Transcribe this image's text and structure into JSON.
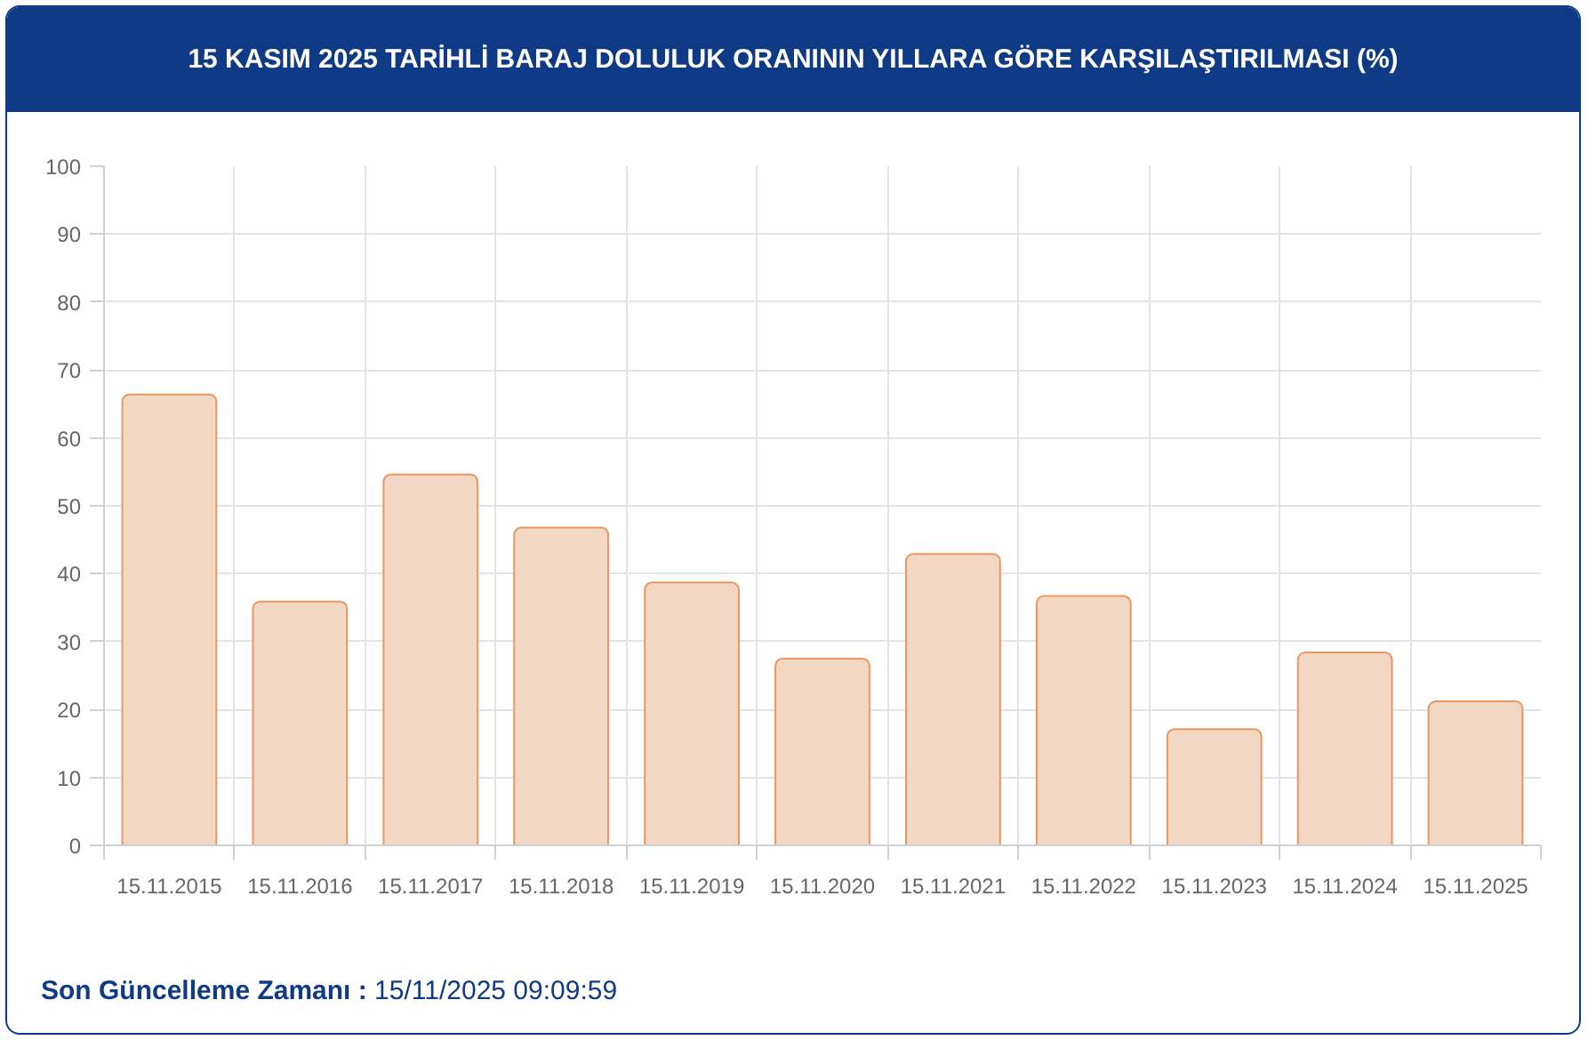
{
  "chart_data": {
    "type": "bar",
    "title": "15 KASIM 2025 TARİHLİ BARAJ DOLULUK ORANININ YILLARA GÖRE KARŞILAŞTIRILMASI (%)",
    "categories": [
      "15.11.2015",
      "15.11.2016",
      "15.11.2017",
      "15.11.2018",
      "15.11.2019",
      "15.11.2020",
      "15.11.2021",
      "15.11.2022",
      "15.11.2023",
      "15.11.2024",
      "15.11.2025"
    ],
    "values": [
      66.4,
      35.9,
      54.6,
      46.8,
      38.7,
      27.5,
      42.9,
      36.7,
      17.1,
      28.4,
      21.2
    ],
    "color": "#f2d7c5",
    "ylim": [
      0,
      100
    ],
    "yticks": [
      0,
      10,
      20,
      30,
      40,
      50,
      60,
      70,
      80,
      90,
      100
    ],
    "grid": true,
    "annotations": [
      "Son Güncelleme Zamanı :",
      "15/11/2025 09:09:59"
    ]
  }
}
